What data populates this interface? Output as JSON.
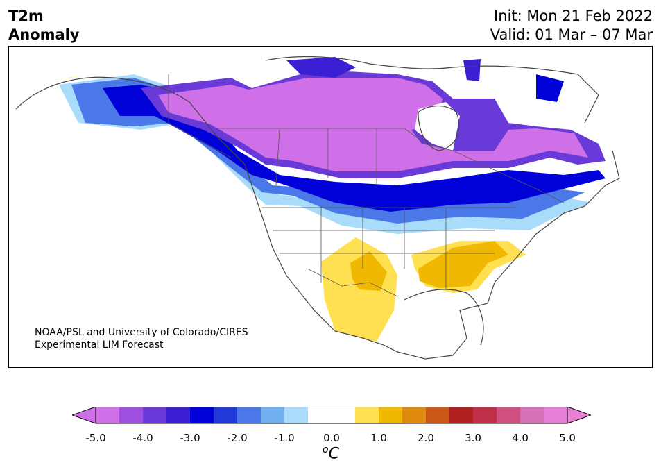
{
  "title": {
    "line1": "T2m",
    "line2": "Anomaly"
  },
  "init": "Init: Mon 21 Feb 2022",
  "valid": "Valid: 01 Mar – 07 Mar",
  "credit": {
    "line1": "NOAA/PSL and University of Colorado/CIRES",
    "line2": "Experimental LIM Forecast"
  },
  "colorbar": {
    "unit_base": "C",
    "unit_sup": "o",
    "ticks": [
      "-5.0",
      "-4.0",
      "-3.0",
      "-2.0",
      "-1.0",
      "0.0",
      "1.0",
      "2.0",
      "3.0",
      "4.0",
      "5.0"
    ],
    "colors": [
      "#d070e8",
      "#a050e0",
      "#6a3ad8",
      "#3a1fd4",
      "#0000d8",
      "#2238d8",
      "#4a78e8",
      "#70aff0",
      "#a8dcfa",
      "#ffffff",
      "#ffffff",
      "#ffe050",
      "#f0b800",
      "#e08a10",
      "#cc5818",
      "#b02020",
      "#c03048",
      "#d05080",
      "#d870b8",
      "#e880d8"
    ]
  }
}
